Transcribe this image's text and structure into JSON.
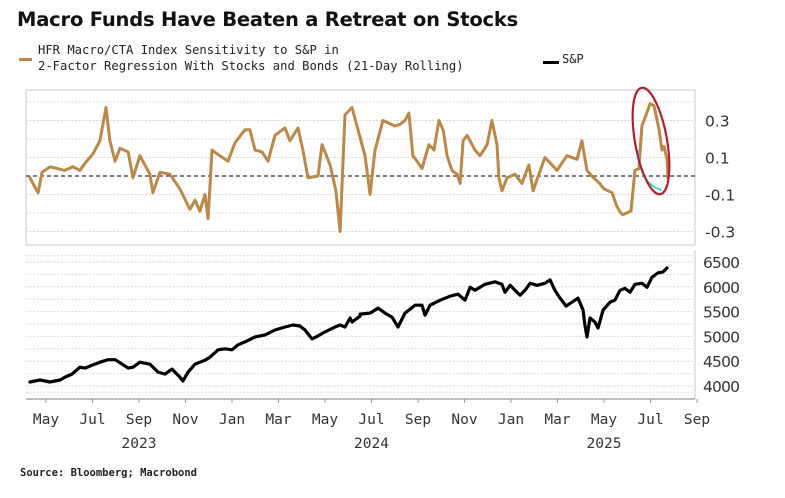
{
  "chart_data": [
    {
      "type": "line",
      "panel": "top",
      "title": "Macro Funds Have Beaten a Retreat on Stocks",
      "series": [
        {
          "name": "HFR Macro/CTA Index Sensitivity to S&P in 2-Factor Regression With Stocks and Bonds (21-Day Rolling)",
          "color": "#B8894A",
          "x_unit": "months since May 2023",
          "points": [
            [
              -0.69,
              -0.01
            ],
            [
              -0.52,
              -0.05
            ],
            [
              -0.34,
              -0.09
            ],
            [
              -0.17,
              0.02
            ],
            [
              0.17,
              0.05
            ],
            [
              0.5,
              0.04
            ],
            [
              0.8,
              0.03
            ],
            [
              1.16,
              0.05
            ],
            [
              1.46,
              0.03
            ],
            [
              1.68,
              0.07
            ],
            [
              2.02,
              0.12
            ],
            [
              2.32,
              0.19
            ],
            [
              2.58,
              0.37
            ],
            [
              2.75,
              0.19
            ],
            [
              2.97,
              0.08
            ],
            [
              3.18,
              0.15
            ],
            [
              3.53,
              0.13
            ],
            [
              3.74,
              -0.01
            ],
            [
              4.04,
              0.11
            ],
            [
              4.47,
              0.01
            ],
            [
              4.6,
              -0.09
            ],
            [
              4.9,
              0.02
            ],
            [
              5.33,
              0.01
            ],
            [
              5.76,
              -0.07
            ],
            [
              6.19,
              -0.18
            ],
            [
              6.41,
              -0.13
            ],
            [
              6.62,
              -0.19
            ],
            [
              6.84,
              -0.1
            ],
            [
              6.97,
              -0.23
            ],
            [
              7.14,
              0.14
            ],
            [
              7.48,
              0.11
            ],
            [
              7.83,
              0.08
            ],
            [
              8.13,
              0.18
            ],
            [
              8.56,
              0.25
            ],
            [
              8.77,
              0.25
            ],
            [
              8.99,
              0.14
            ],
            [
              9.29,
              0.13
            ],
            [
              9.55,
              0.08
            ],
            [
              9.85,
              0.22
            ],
            [
              10.28,
              0.26
            ],
            [
              10.49,
              0.19
            ],
            [
              10.84,
              0.26
            ],
            [
              11.05,
              0.14
            ],
            [
              11.27,
              -0.01
            ],
            [
              11.7,
              0.0
            ],
            [
              11.87,
              0.17
            ],
            [
              12.22,
              0.06
            ],
            [
              12.47,
              -0.08
            ],
            [
              12.65,
              -0.3
            ],
            [
              12.86,
              0.33
            ],
            [
              13.16,
              0.37
            ],
            [
              13.42,
              0.25
            ],
            [
              13.72,
              0.11
            ],
            [
              13.94,
              -0.1
            ],
            [
              14.15,
              0.14
            ],
            [
              14.49,
              0.3
            ],
            [
              15.01,
              0.27
            ],
            [
              15.23,
              0.28
            ],
            [
              15.44,
              0.3
            ],
            [
              15.61,
              0.34
            ],
            [
              15.78,
              0.11
            ],
            [
              15.96,
              0.08
            ],
            [
              16.17,
              0.04
            ],
            [
              16.47,
              0.17
            ],
            [
              16.69,
              0.14
            ],
            [
              16.9,
              0.3
            ],
            [
              17.08,
              0.25
            ],
            [
              17.25,
              0.11
            ],
            [
              17.46,
              0.03
            ],
            [
              17.68,
              0.01
            ],
            [
              17.81,
              -0.04
            ],
            [
              17.94,
              0.19
            ],
            [
              18.11,
              0.22
            ],
            [
              18.45,
              0.14
            ],
            [
              18.67,
              0.11
            ],
            [
              18.97,
              0.17
            ],
            [
              19.18,
              0.3
            ],
            [
              19.4,
              0.17
            ],
            [
              19.48,
              -0.01
            ],
            [
              19.61,
              -0.08
            ],
            [
              19.83,
              -0.01
            ],
            [
              20.17,
              0.01
            ],
            [
              20.47,
              -0.04
            ],
            [
              20.77,
              0.06
            ],
            [
              20.95,
              -0.08
            ],
            [
              21.2,
              0.01
            ],
            [
              21.46,
              0.1
            ],
            [
              21.76,
              0.06
            ],
            [
              21.98,
              0.03
            ],
            [
              22.41,
              0.11
            ],
            [
              22.84,
              0.09
            ],
            [
              23.05,
              0.19
            ],
            [
              23.27,
              0.03
            ],
            [
              23.48,
              0.0
            ],
            [
              23.81,
              -0.04
            ],
            [
              24.0,
              -0.07
            ],
            [
              24.35,
              -0.09
            ],
            [
              24.54,
              -0.16
            ],
            [
              24.67,
              -0.19
            ],
            [
              24.8,
              -0.21
            ],
            [
              24.97,
              -0.2
            ],
            [
              25.16,
              -0.19
            ],
            [
              25.33,
              0.03
            ],
            [
              25.5,
              0.04
            ],
            [
              25.63,
              0.27
            ],
            [
              25.81,
              0.33
            ],
            [
              25.98,
              0.39
            ],
            [
              26.15,
              0.38
            ],
            [
              26.37,
              0.25
            ],
            [
              26.49,
              0.14
            ],
            [
              26.58,
              0.16
            ],
            [
              26.71,
              0.09
            ],
            [
              26.75,
              -0.01
            ]
          ]
        }
      ],
      "y_ticks": [
        0.3,
        0.1,
        -0.1,
        -0.3
      ],
      "y_tick_labels": [
        "0.3",
        "0.1",
        "-0.1",
        "-0.3"
      ],
      "ylim": [
        -0.37,
        0.47
      ],
      "gridlines_at": [
        0.4,
        0.3,
        0.2,
        0.1,
        -0.1,
        -0.2,
        -0.3
      ],
      "zero_line": "dashed",
      "annotations": [
        {
          "type": "ellipse",
          "color": "#B0202E",
          "around": "mid-2025 spike and decline"
        },
        {
          "type": "arc",
          "color": "#3FD6D0",
          "along": "decline from 2025 peak"
        }
      ]
    },
    {
      "type": "line",
      "panel": "bottom",
      "series": [
        {
          "name": "S&P",
          "color": "#000000",
          "x_unit": "months since May 2023",
          "points": [
            [
              -0.69,
              4080
            ],
            [
              -0.26,
              4120
            ],
            [
              0.17,
              4080
            ],
            [
              0.6,
              4120
            ],
            [
              0.82,
              4180
            ],
            [
              1.12,
              4240
            ],
            [
              1.46,
              4380
            ],
            [
              1.68,
              4360
            ],
            [
              1.98,
              4420
            ],
            [
              2.32,
              4480
            ],
            [
              2.67,
              4530
            ],
            [
              2.97,
              4530
            ],
            [
              3.18,
              4470
            ],
            [
              3.53,
              4360
            ],
            [
              3.74,
              4380
            ],
            [
              4.04,
              4480
            ],
            [
              4.47,
              4440
            ],
            [
              4.82,
              4280
            ],
            [
              5.12,
              4240
            ],
            [
              5.42,
              4340
            ],
            [
              5.76,
              4180
            ],
            [
              5.89,
              4100
            ],
            [
              6.11,
              4280
            ],
            [
              6.41,
              4440
            ],
            [
              6.84,
              4520
            ],
            [
              7.05,
              4580
            ],
            [
              7.4,
              4730
            ],
            [
              7.7,
              4750
            ],
            [
              8.0,
              4730
            ],
            [
              8.26,
              4830
            ],
            [
              8.56,
              4890
            ],
            [
              8.99,
              4990
            ],
            [
              9.42,
              5030
            ],
            [
              9.85,
              5130
            ],
            [
              10.28,
              5190
            ],
            [
              10.62,
              5230
            ],
            [
              10.92,
              5210
            ],
            [
              11.14,
              5130
            ],
            [
              11.44,
              4950
            ],
            [
              11.7,
              5010
            ],
            [
              12.0,
              5090
            ],
            [
              12.43,
              5190
            ],
            [
              12.65,
              5230
            ],
            [
              12.86,
              5190
            ],
            [
              13.16,
              5290
            ],
            [
              13.51,
              5410
            ],
            [
              13.08,
              5370
            ],
            [
              13.51,
              5450
            ],
            [
              13.94,
              5470
            ],
            [
              14.28,
              5570
            ],
            [
              14.58,
              5470
            ],
            [
              14.88,
              5390
            ],
            [
              15.14,
              5190
            ],
            [
              15.44,
              5470
            ],
            [
              15.87,
              5630
            ],
            [
              16.17,
              5630
            ],
            [
              16.3,
              5430
            ],
            [
              16.52,
              5630
            ],
            [
              16.95,
              5730
            ],
            [
              17.38,
              5810
            ],
            [
              17.72,
              5850
            ],
            [
              18.02,
              5730
            ],
            [
              18.24,
              5990
            ],
            [
              18.45,
              5930
            ],
            [
              18.88,
              6050
            ],
            [
              19.31,
              6100
            ],
            [
              19.61,
              6050
            ],
            [
              19.74,
              5890
            ],
            [
              19.96,
              6030
            ],
            [
              20.17,
              5930
            ],
            [
              20.39,
              5830
            ],
            [
              20.6,
              5930
            ],
            [
              20.82,
              6070
            ],
            [
              21.12,
              6030
            ],
            [
              21.46,
              6070
            ],
            [
              21.68,
              6140
            ],
            [
              21.89,
              5930
            ],
            [
              22.11,
              5770
            ],
            [
              22.37,
              5610
            ],
            [
              22.62,
              5690
            ],
            [
              22.88,
              5770
            ],
            [
              23.1,
              5530
            ],
            [
              23.18,
              5230
            ],
            [
              23.27,
              4990
            ],
            [
              23.4,
              5370
            ],
            [
              23.61,
              5290
            ],
            [
              23.74,
              5170
            ],
            [
              23.96,
              5530
            ],
            [
              24.26,
              5690
            ],
            [
              24.47,
              5730
            ],
            [
              24.69,
              5930
            ],
            [
              24.9,
              5970
            ],
            [
              25.12,
              5890
            ],
            [
              25.33,
              6050
            ],
            [
              25.63,
              6070
            ],
            [
              25.85,
              5990
            ],
            [
              26.06,
              6190
            ],
            [
              26.32,
              6280
            ],
            [
              26.54,
              6300
            ],
            [
              26.71,
              6380
            ]
          ]
        }
      ],
      "y_ticks": [
        6500,
        6000,
        5500,
        5000,
        4500,
        4000
      ],
      "y_tick_labels": [
        "6500",
        "6000",
        "5500",
        "5000",
        "4500",
        "4000"
      ],
      "ylim": [
        3900,
        6600
      ],
      "grid": true
    }
  ],
  "x_axis": {
    "month_labels": [
      "May",
      "Jul",
      "Sep",
      "Nov",
      "Jan",
      "Mar",
      "May",
      "Jul",
      "Sep",
      "Nov",
      "Jan",
      "Mar",
      "May",
      "Jul",
      "Sep"
    ],
    "year_labels": [
      {
        "label": "2023",
        "under_month_index": 2
      },
      {
        "label": "2024",
        "under_month_index": 7
      },
      {
        "label": "2025",
        "under_month_index": 12
      }
    ],
    "range_months_since_may_2023": [
      -0.86,
      28.05
    ]
  },
  "title": "Macro Funds Have Beaten a Retreat on Stocks",
  "legend": {
    "series1_line1": "HFR Macro/CTA Index Sensitivity to S&P in",
    "series1_line2": "2-Factor Regression With Stocks and Bonds (21-Day Rolling)",
    "series2": "S&P"
  },
  "source": "Source: Bloomberg; Macrobond"
}
